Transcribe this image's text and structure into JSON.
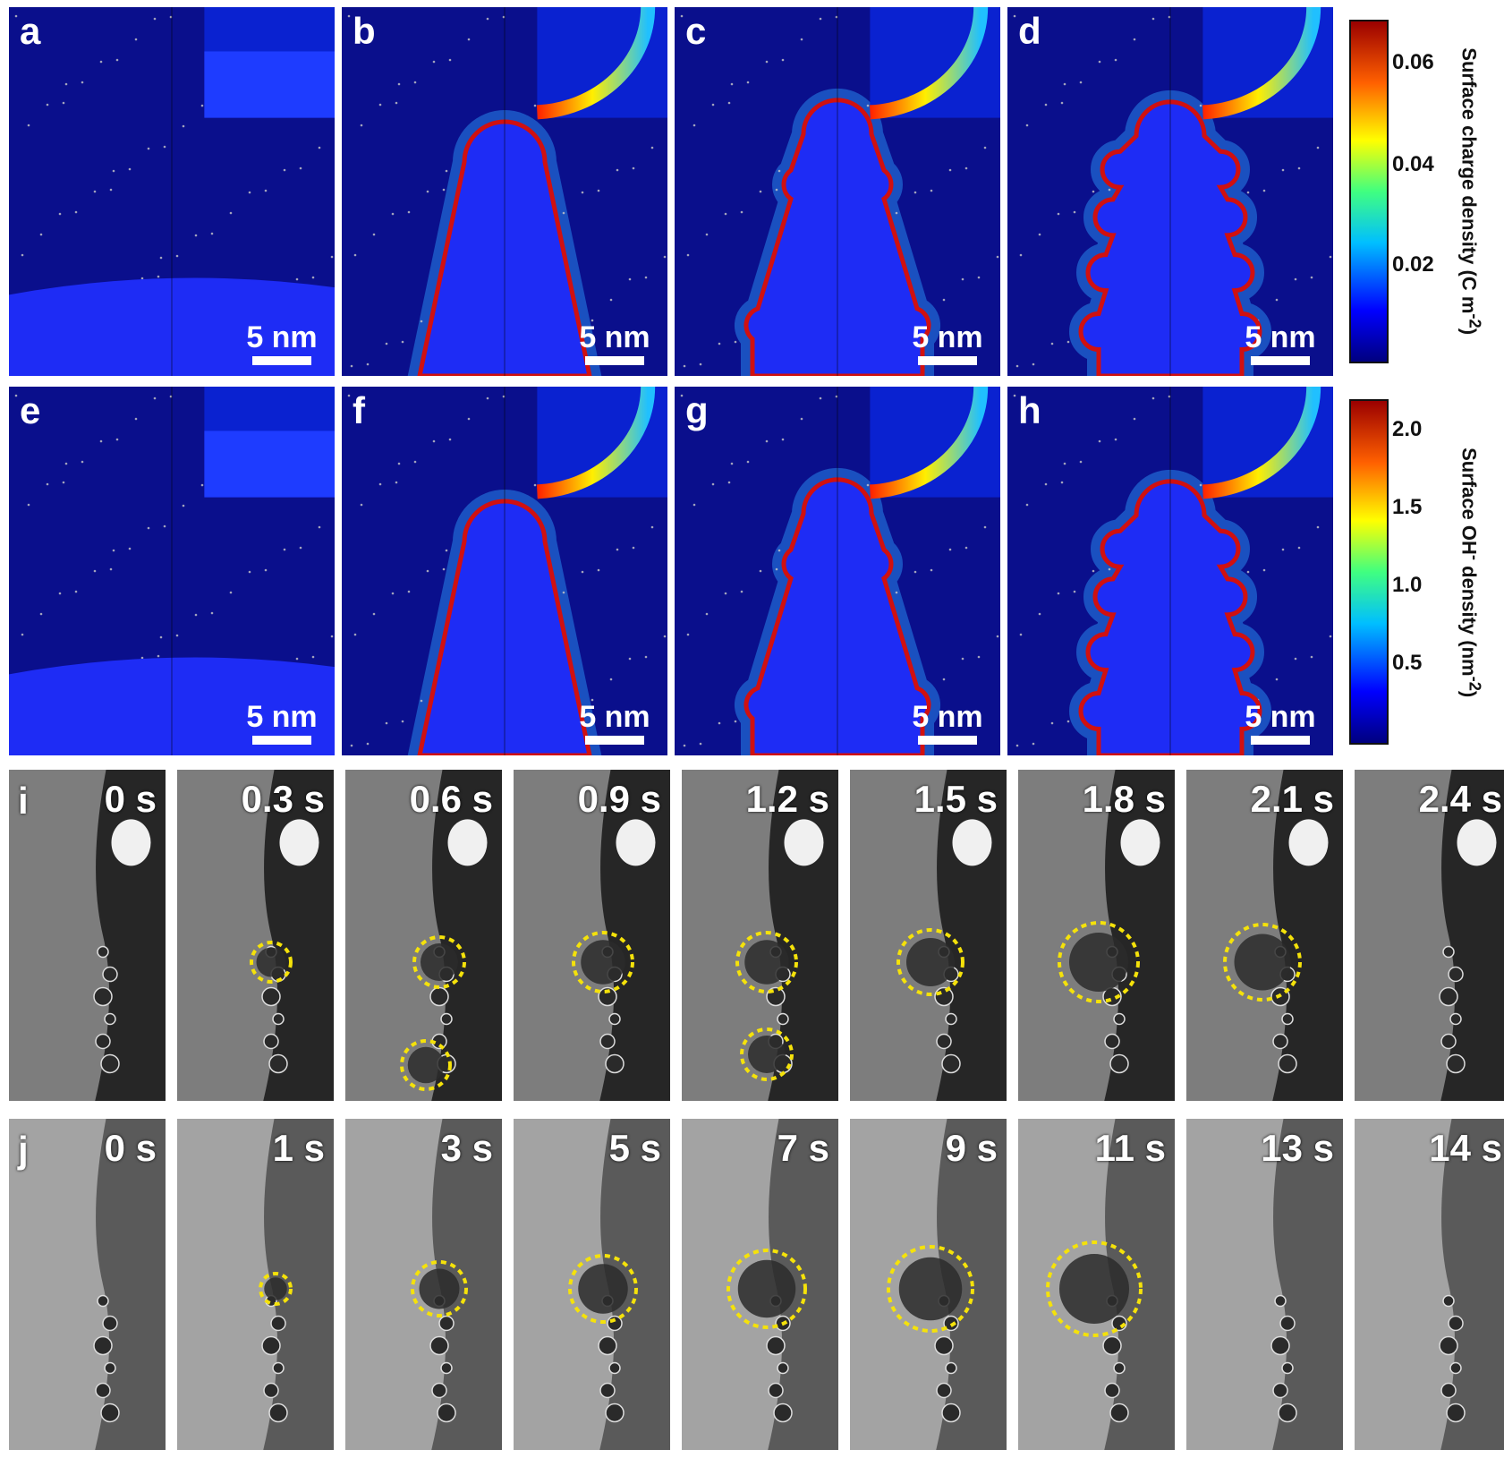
{
  "colors": {
    "sim_background": "#0a0f8c",
    "particle_fill": "#1e2cf5",
    "circle_highlight": "#f5e20a",
    "arrow": "#c8c8c8"
  },
  "simulation": {
    "scale_bar": "5 nm",
    "panels": [
      {
        "label": "a",
        "stage": 0
      },
      {
        "label": "b",
        "stage": 1
      },
      {
        "label": "c",
        "stage": 2
      },
      {
        "label": "d",
        "stage": 3
      },
      {
        "label": "e",
        "stage": 0
      },
      {
        "label": "f",
        "stage": 1
      },
      {
        "label": "g",
        "stage": 2
      },
      {
        "label": "h",
        "stage": 3
      }
    ]
  },
  "colorbars": [
    {
      "title_main": "Surface charge density (C m",
      "title_sup": "-2",
      "title_end": ")",
      "ticks": [
        "0.06",
        "0.04",
        "0.02"
      ]
    },
    {
      "title_main": "Surface OH",
      "title_sup": "-",
      "title_mid": " density (nm",
      "title_sup2": "-2",
      "title_end": ")",
      "ticks": [
        "2.0",
        "1.5",
        "1.0",
        "0.5"
      ]
    }
  ],
  "movie_rows": [
    {
      "label": "i",
      "times": [
        "0 s",
        "0.3 s",
        "0.6 s",
        "0.9 s",
        "1.2 s",
        "1.5 s",
        "1.8 s",
        "2.1 s",
        "2.4 s"
      ]
    },
    {
      "label": "j",
      "times": [
        "0 s",
        "1 s",
        "3 s",
        "5 s",
        "7 s",
        "9 s",
        "11 s",
        "13 s",
        "14 s"
      ]
    }
  ]
}
